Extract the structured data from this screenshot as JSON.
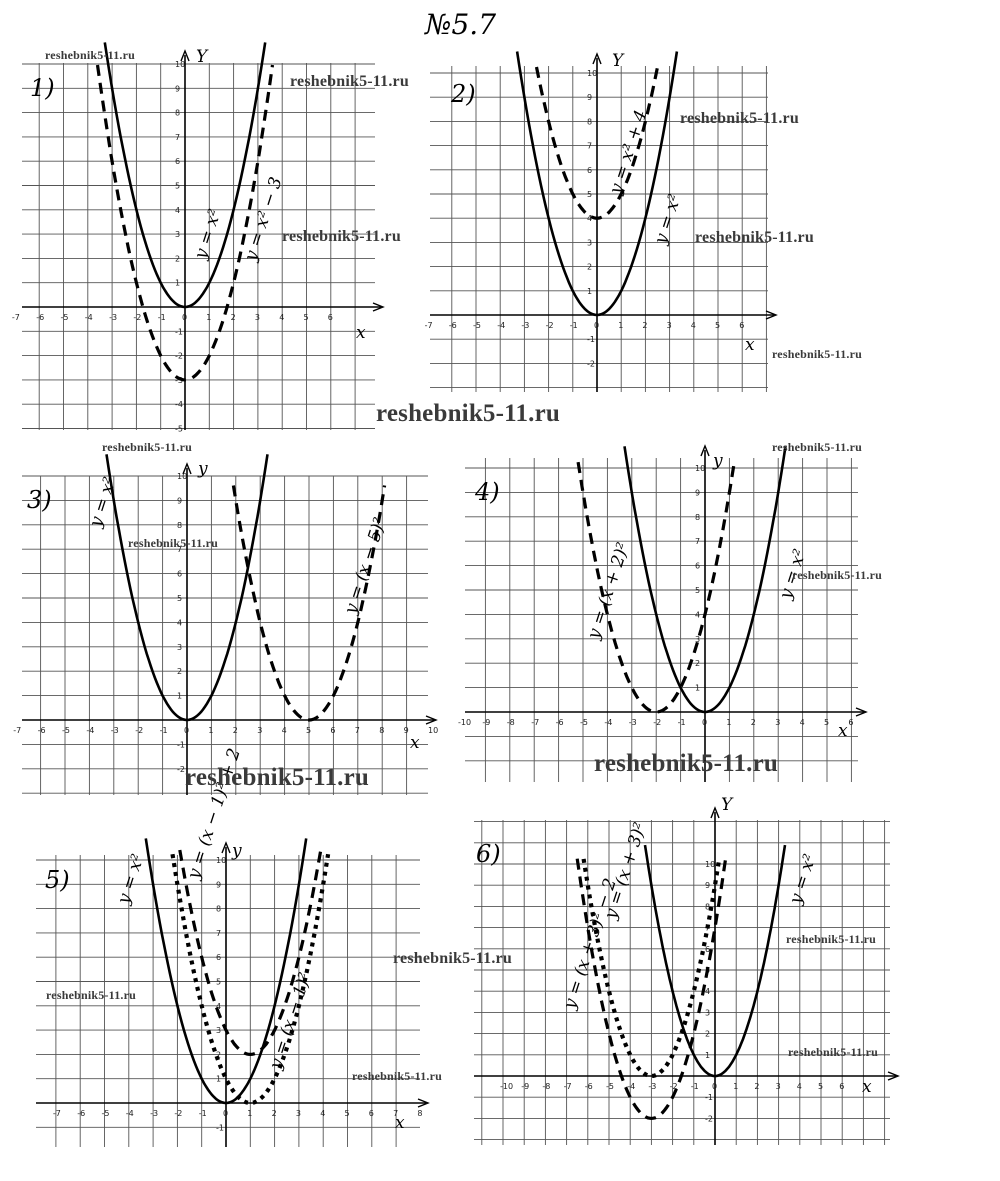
{
  "page": {
    "title": "№5.7",
    "watermark_main": "reshebnik5-11.ru",
    "watermark_small": "reshebnik5-11.ru"
  },
  "panels": [
    {
      "number": "1)",
      "x_ticks": [
        "-7",
        "-6",
        "-5",
        "-4",
        "-3",
        "-2",
        "-1",
        "0",
        "1",
        "2",
        "3",
        "4",
        "5",
        "6"
      ],
      "y_ticks": [
        "10",
        "9",
        "8",
        "7",
        "6",
        "5",
        "4",
        "3",
        "2",
        "1",
        "-1",
        "-2",
        "-3",
        "-4",
        "-5"
      ],
      "axis_y": "Y",
      "axis_x": "x",
      "curve_labels": [
        "y = x²",
        "y = x² − 3"
      ]
    },
    {
      "number": "2)",
      "x_ticks": [
        "-7",
        "-6",
        "-5",
        "-4",
        "-3",
        "-2",
        "-1",
        "0",
        "1",
        "2",
        "3",
        "4",
        "5",
        "6"
      ],
      "y_ticks": [
        "10",
        "9",
        "8",
        "7",
        "6",
        "5",
        "4",
        "3",
        "2",
        "1",
        "-1",
        "-2"
      ],
      "axis_y": "Y",
      "axis_x": "x",
      "curve_labels": [
        "y = x² + 4",
        "y = x²"
      ]
    },
    {
      "number": "3)",
      "x_ticks": [
        "-7",
        "-6",
        "-5",
        "-4",
        "-3",
        "-2",
        "-1",
        "0",
        "1",
        "2",
        "3",
        "4",
        "5",
        "6",
        "7",
        "8",
        "9",
        "10"
      ],
      "y_ticks": [
        "10",
        "9",
        "8",
        "7",
        "6",
        "5",
        "4",
        "3",
        "2",
        "1",
        "-1",
        "-2"
      ],
      "axis_y": "y",
      "axis_x": "x",
      "curve_labels": [
        "y = x²",
        "y = (x − 5)²"
      ]
    },
    {
      "number": "4)",
      "x_ticks": [
        "-10",
        "-9",
        "-8",
        "-7",
        "-6",
        "-5",
        "-4",
        "-3",
        "-2",
        "-1",
        "0",
        "1",
        "2",
        "3",
        "4",
        "5",
        "6"
      ],
      "y_ticks": [
        "10",
        "9",
        "8",
        "7",
        "6",
        "5",
        "4",
        "3",
        "2",
        "1"
      ],
      "axis_y": "y",
      "axis_x": "x",
      "curve_labels": [
        "y = (x + 2)²",
        "y = x²"
      ]
    },
    {
      "number": "5)",
      "x_ticks": [
        "-7",
        "-6",
        "-5",
        "-4",
        "-3",
        "-2",
        "-1",
        "0",
        "1",
        "2",
        "3",
        "4",
        "5",
        "6",
        "7",
        "8"
      ],
      "y_ticks": [
        "10",
        "9",
        "8",
        "7",
        "6",
        "5",
        "4",
        "3",
        "2",
        "1",
        "-1"
      ],
      "axis_y": "y",
      "axis_x": "x",
      "curve_labels": [
        "y = x²",
        "y = (x − 1)² + 2",
        "y = (x − 1)²"
      ]
    },
    {
      "number": "6)",
      "x_ticks": [
        "-10",
        "-9",
        "-8",
        "-7",
        "-6",
        "-5",
        "-4",
        "-3",
        "-2",
        "-1",
        "0",
        "1",
        "2",
        "3",
        "4",
        "5",
        "6"
      ],
      "y_ticks": [
        "10",
        "9",
        "8",
        "7",
        "6",
        "5",
        "4",
        "3",
        "2",
        "1",
        "-1",
        "-2"
      ],
      "axis_y": "Y",
      "axis_x": "x",
      "curve_labels": [
        "y = (x + 3)² − 2",
        "y = (x + 3)²",
        "y = x²"
      ]
    }
  ]
}
